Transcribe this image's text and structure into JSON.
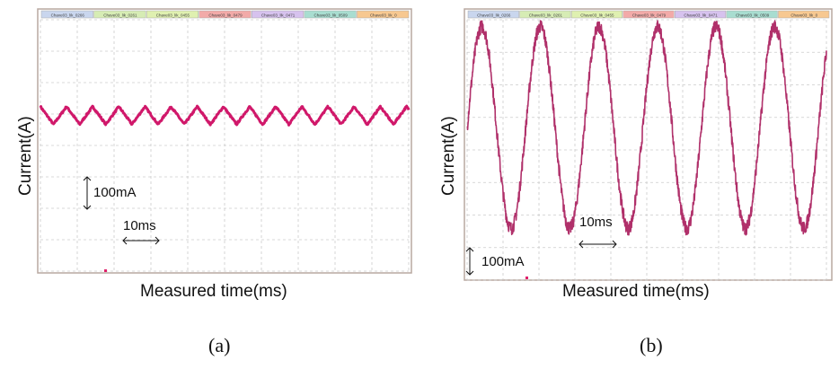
{
  "chart_data": [
    {
      "type": "line",
      "panel": "(a)",
      "xlabel": "Measured time(ms)",
      "ylabel": "Current(A)",
      "xlim": [
        0,
        100
      ],
      "ylim_mA": [
        0,
        780
      ],
      "grid": true,
      "tabs": [
        "Chave03_lik_0266",
        "Chave03_lik_0261",
        "Chave03_lik_0455",
        "Chave03_lik_0479",
        "Chave03_lik_0471",
        "Chave03_lik_0509",
        "Chave03_lik_0"
      ],
      "scale_annotations": {
        "current": "100mA",
        "time": "10ms"
      },
      "series": [
        {
          "name": "current",
          "waveform": "triangle",
          "mean_mA": 483,
          "peak_to_peak_mA": 55,
          "period_ms": 7.1,
          "noise_mA": 3,
          "color": "#d0186a"
        }
      ]
    },
    {
      "type": "line",
      "panel": "(b)",
      "xlabel": "Measured time(ms)",
      "ylabel": "Current(A)",
      "xlim": [
        0,
        100
      ],
      "ylim_mA": [
        0,
        967
      ],
      "grid": true,
      "tabs": [
        "Chave03_lik_0266",
        "Chave03_lik_0261",
        "Chave03_lik_0455",
        "Chave03_lik_0479",
        "Chave03_lik_0471",
        "Chave03_lik_0509",
        "Chave03_lik_0"
      ],
      "scale_annotations": {
        "current": "100mA",
        "time": "10ms"
      },
      "series": [
        {
          "name": "current",
          "waveform": "sine",
          "mean_mA": 567,
          "amplitude_mA": 375,
          "period_ms": 16.3,
          "phase_ms": 4.1,
          "noise_mA": 25,
          "color": "#b0306a"
        }
      ]
    }
  ],
  "tab_colors": [
    "#c9d6ee",
    "#d6ecb4",
    "#dff0b0",
    "#f2aaa8",
    "#d6c2ee",
    "#a8ddd0",
    "#f7c890"
  ]
}
